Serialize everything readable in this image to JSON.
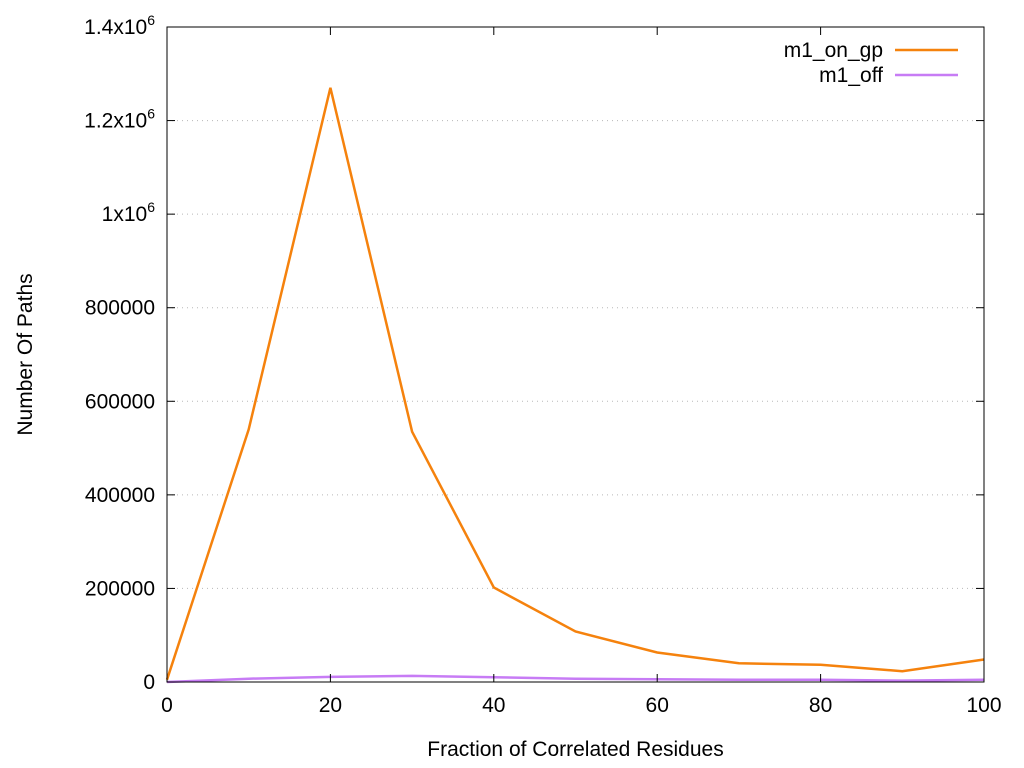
{
  "chart_data": {
    "type": "line",
    "xlabel": "Fraction of Correlated Residues",
    "ylabel": "Number Of Paths",
    "xlim": [
      0,
      100
    ],
    "ylim": [
      0,
      1400000
    ],
    "grid": "horizontal",
    "legend_position": "top-right",
    "x_ticks": [
      {
        "value": 0,
        "label": "0"
      },
      {
        "value": 20,
        "label": "20"
      },
      {
        "value": 40,
        "label": "40"
      },
      {
        "value": 60,
        "label": "60"
      },
      {
        "value": 80,
        "label": "80"
      },
      {
        "value": 100,
        "label": "100"
      }
    ],
    "y_ticks": [
      {
        "value": 0,
        "label": "0"
      },
      {
        "value": 200000,
        "label": "200000"
      },
      {
        "value": 400000,
        "label": "400000"
      },
      {
        "value": 600000,
        "label": "600000"
      },
      {
        "value": 800000,
        "label": "800000"
      },
      {
        "value": 1000000,
        "label": "1x10",
        "sup": "6"
      },
      {
        "value": 1200000,
        "label": "1.2x10",
        "sup": "6"
      },
      {
        "value": 1400000,
        "label": "1.4x10",
        "sup": "6"
      }
    ],
    "x": [
      0,
      10,
      20,
      30,
      40,
      50,
      60,
      70,
      80,
      90,
      100
    ],
    "series": [
      {
        "name": "m1_on_gp",
        "color": "#f5820d",
        "values": [
          5000,
          540000,
          1270000,
          535000,
          202000,
          108000,
          63000,
          40000,
          37000,
          23000,
          48000
        ]
      },
      {
        "name": "m1_off",
        "color": "#c77cf5",
        "values": [
          0,
          7000,
          11000,
          13000,
          10000,
          7000,
          6000,
          5000,
          5000,
          3000,
          5000
        ]
      }
    ]
  }
}
